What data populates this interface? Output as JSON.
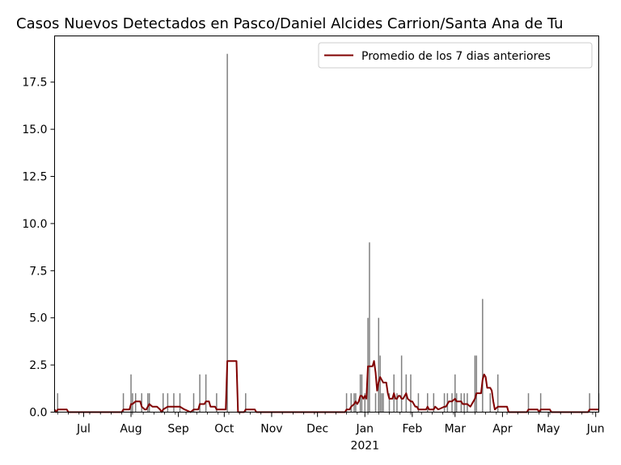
{
  "chart_data": {
    "type": "bar",
    "title": "Casos Nuevos Detectados en Pasco/Daniel Alcides Carrion/Santa Ana de Tu",
    "xlabel": "",
    "ylabel": "",
    "ylim": [
      0,
      20
    ],
    "xlim": [
      "2020-06-12",
      "2021-06-03"
    ],
    "grid": false,
    "legend_position": "top-right",
    "yticks": [
      0.0,
      2.5,
      5.0,
      7.5,
      10.0,
      12.5,
      15.0,
      17.5
    ],
    "ytick_labels": [
      "0.0",
      "2.5",
      "5.0",
      "7.5",
      "10.0",
      "12.5",
      "15.0",
      "17.5"
    ],
    "xticks": [
      {
        "date": "2020-07-01",
        "label": "Jul"
      },
      {
        "date": "2020-08-01",
        "label": "Aug"
      },
      {
        "date": "2020-09-01",
        "label": "Sep"
      },
      {
        "date": "2020-10-01",
        "label": "Oct"
      },
      {
        "date": "2020-11-01",
        "label": "Nov"
      },
      {
        "date": "2020-12-01",
        "label": "Dec"
      },
      {
        "date": "2021-01-01",
        "label": "Jan"
      },
      {
        "date": "2021-02-01",
        "label": "Feb"
      },
      {
        "date": "2021-03-01",
        "label": "Mar"
      },
      {
        "date": "2021-04-01",
        "label": "Apr"
      },
      {
        "date": "2021-05-01",
        "label": "May"
      },
      {
        "date": "2021-06-01",
        "label": "Jun"
      }
    ],
    "year_label": {
      "date": "2021-01-01",
      "label": "2021"
    },
    "bar_color": "#808080",
    "line_color": "#800000",
    "series": [
      {
        "type": "bar",
        "points": [
          [
            "2020-06-14",
            1
          ],
          [
            "2020-07-27",
            1
          ],
          [
            "2020-08-01",
            2
          ],
          [
            "2020-08-02",
            1
          ],
          [
            "2020-08-04",
            1
          ],
          [
            "2020-08-08",
            1
          ],
          [
            "2020-08-12",
            1
          ],
          [
            "2020-08-13",
            1
          ],
          [
            "2020-08-22",
            1
          ],
          [
            "2020-08-25",
            1
          ],
          [
            "2020-08-29",
            1
          ],
          [
            "2020-09-02",
            1
          ],
          [
            "2020-09-11",
            1
          ],
          [
            "2020-09-15",
            2
          ],
          [
            "2020-09-19",
            2
          ],
          [
            "2020-09-26",
            1
          ],
          [
            "2020-10-03",
            19
          ],
          [
            "2020-10-15",
            1
          ],
          [
            "2020-12-20",
            1
          ],
          [
            "2020-12-23",
            1
          ],
          [
            "2020-12-25",
            1
          ],
          [
            "2020-12-26",
            1
          ],
          [
            "2020-12-29",
            2
          ],
          [
            "2020-12-30",
            2
          ],
          [
            "2021-01-01",
            1
          ],
          [
            "2021-01-03",
            5
          ],
          [
            "2021-01-04",
            9
          ],
          [
            "2021-01-08",
            1
          ],
          [
            "2021-01-10",
            5
          ],
          [
            "2021-01-11",
            3
          ],
          [
            "2021-01-12",
            1
          ],
          [
            "2021-01-13",
            1
          ],
          [
            "2021-01-17",
            1
          ],
          [
            "2021-01-20",
            2
          ],
          [
            "2021-01-22",
            1
          ],
          [
            "2021-01-25",
            3
          ],
          [
            "2021-01-28",
            2
          ],
          [
            "2021-01-31",
            2
          ],
          [
            "2021-02-05",
            1
          ],
          [
            "2021-02-11",
            1
          ],
          [
            "2021-02-15",
            1
          ],
          [
            "2021-02-22",
            1
          ],
          [
            "2021-02-24",
            1
          ],
          [
            "2021-02-27",
            1
          ],
          [
            "2021-03-01",
            2
          ],
          [
            "2021-03-02",
            1
          ],
          [
            "2021-03-05",
            1
          ],
          [
            "2021-03-07",
            1
          ],
          [
            "2021-03-09",
            1
          ],
          [
            "2021-03-14",
            3
          ],
          [
            "2021-03-15",
            3
          ],
          [
            "2021-03-19",
            6
          ],
          [
            "2021-03-24",
            1
          ],
          [
            "2021-03-29",
            2
          ],
          [
            "2021-04-18",
            1
          ],
          [
            "2021-04-26",
            1
          ],
          [
            "2021-05-28",
            1
          ],
          [
            "2021-06-03",
            1
          ]
        ]
      },
      {
        "type": "line",
        "name": "Promedio de los 7 dias anteriores",
        "points": [
          [
            "2020-06-12",
            0.14
          ],
          [
            "2020-06-13",
            0.0
          ],
          [
            "2020-06-14",
            0.14
          ],
          [
            "2020-06-20",
            0.14
          ],
          [
            "2020-06-21",
            0.0
          ],
          [
            "2020-07-26",
            0.0
          ],
          [
            "2020-07-27",
            0.14
          ],
          [
            "2020-07-31",
            0.14
          ],
          [
            "2020-08-01",
            0.43
          ],
          [
            "2020-08-02",
            0.43
          ],
          [
            "2020-08-04",
            0.57
          ],
          [
            "2020-08-07",
            0.57
          ],
          [
            "2020-08-08",
            0.29
          ],
          [
            "2020-08-10",
            0.14
          ],
          [
            "2020-08-11",
            0.14
          ],
          [
            "2020-08-12",
            0.29
          ],
          [
            "2020-08-13",
            0.43
          ],
          [
            "2020-08-15",
            0.29
          ],
          [
            "2020-08-18",
            0.29
          ],
          [
            "2020-08-20",
            0.14
          ],
          [
            "2020-08-21",
            0.0
          ],
          [
            "2020-08-22",
            0.14
          ],
          [
            "2020-08-25",
            0.29
          ],
          [
            "2020-08-29",
            0.29
          ],
          [
            "2020-09-01",
            0.29
          ],
          [
            "2020-09-02",
            0.29
          ],
          [
            "2020-09-05",
            0.14
          ],
          [
            "2020-09-09",
            0.0
          ],
          [
            "2020-09-11",
            0.14
          ],
          [
            "2020-09-14",
            0.14
          ],
          [
            "2020-09-15",
            0.43
          ],
          [
            "2020-09-18",
            0.43
          ],
          [
            "2020-09-19",
            0.57
          ],
          [
            "2020-09-21",
            0.57
          ],
          [
            "2020-09-22",
            0.29
          ],
          [
            "2020-09-25",
            0.29
          ],
          [
            "2020-09-26",
            0.14
          ],
          [
            "2020-10-02",
            0.14
          ],
          [
            "2020-10-03",
            2.71
          ],
          [
            "2020-10-09",
            2.71
          ],
          [
            "2020-10-10",
            0.0
          ],
          [
            "2020-10-14",
            0.0
          ],
          [
            "2020-10-15",
            0.14
          ],
          [
            "2020-10-21",
            0.14
          ],
          [
            "2020-10-22",
            0.0
          ],
          [
            "2020-12-19",
            0.0
          ],
          [
            "2020-12-20",
            0.14
          ],
          [
            "2020-12-22",
            0.14
          ],
          [
            "2020-12-23",
            0.29
          ],
          [
            "2020-12-25",
            0.43
          ],
          [
            "2020-12-26",
            0.57
          ],
          [
            "2020-12-27",
            0.43
          ],
          [
            "2020-12-28",
            0.57
          ],
          [
            "2020-12-29",
            0.86
          ],
          [
            "2020-12-30",
            0.86
          ],
          [
            "2020-12-31",
            0.71
          ],
          [
            "2021-01-01",
            0.86
          ],
          [
            "2021-01-02",
            0.71
          ],
          [
            "2021-01-03",
            2.43
          ],
          [
            "2021-01-06",
            2.43
          ],
          [
            "2021-01-07",
            2.71
          ],
          [
            "2021-01-08",
            2.1
          ],
          [
            "2021-01-09",
            1.14
          ],
          [
            "2021-01-10",
            1.6
          ],
          [
            "2021-01-11",
            1.86
          ],
          [
            "2021-01-13",
            1.57
          ],
          [
            "2021-01-15",
            1.57
          ],
          [
            "2021-01-16",
            1.0
          ],
          [
            "2021-01-17",
            0.71
          ],
          [
            "2021-01-19",
            0.71
          ],
          [
            "2021-01-20",
            1.0
          ],
          [
            "2021-01-21",
            0.71
          ],
          [
            "2021-01-22",
            0.71
          ],
          [
            "2021-01-23",
            0.86
          ],
          [
            "2021-01-24",
            0.86
          ],
          [
            "2021-01-25",
            0.71
          ],
          [
            "2021-01-26",
            0.71
          ],
          [
            "2021-01-28",
            1.0
          ],
          [
            "2021-01-29",
            0.71
          ],
          [
            "2021-01-31",
            0.57
          ],
          [
            "2021-02-01",
            0.57
          ],
          [
            "2021-02-03",
            0.29
          ],
          [
            "2021-02-04",
            0.29
          ],
          [
            "2021-02-05",
            0.14
          ],
          [
            "2021-02-10",
            0.14
          ],
          [
            "2021-02-11",
            0.29
          ],
          [
            "2021-02-12",
            0.14
          ],
          [
            "2021-02-15",
            0.14
          ],
          [
            "2021-02-16",
            0.29
          ],
          [
            "2021-02-18",
            0.14
          ],
          [
            "2021-02-22",
            0.29
          ],
          [
            "2021-02-23",
            0.29
          ],
          [
            "2021-02-25",
            0.57
          ],
          [
            "2021-02-27",
            0.57
          ],
          [
            "2021-03-01",
            0.71
          ],
          [
            "2021-03-02",
            0.57
          ],
          [
            "2021-03-05",
            0.57
          ],
          [
            "2021-03-06",
            0.43
          ],
          [
            "2021-03-09",
            0.43
          ],
          [
            "2021-03-11",
            0.29
          ],
          [
            "2021-03-14",
            0.71
          ],
          [
            "2021-03-15",
            1.0
          ],
          [
            "2021-03-18",
            1.0
          ],
          [
            "2021-03-19",
            1.71
          ],
          [
            "2021-03-20",
            2.0
          ],
          [
            "2021-03-21",
            1.86
          ],
          [
            "2021-03-22",
            1.29
          ],
          [
            "2021-03-24",
            1.29
          ],
          [
            "2021-03-25",
            1.14
          ],
          [
            "2021-03-26",
            0.57
          ],
          [
            "2021-03-27",
            0.14
          ],
          [
            "2021-03-29",
            0.29
          ],
          [
            "2021-04-04",
            0.29
          ],
          [
            "2021-04-05",
            0.0
          ],
          [
            "2021-04-17",
            0.0
          ],
          [
            "2021-04-18",
            0.14
          ],
          [
            "2021-04-24",
            0.14
          ],
          [
            "2021-04-25",
            0.0
          ],
          [
            "2021-04-26",
            0.14
          ],
          [
            "2021-05-02",
            0.14
          ],
          [
            "2021-05-03",
            0.0
          ],
          [
            "2021-05-27",
            0.0
          ],
          [
            "2021-05-28",
            0.14
          ],
          [
            "2021-06-03",
            0.14
          ]
        ]
      }
    ]
  }
}
